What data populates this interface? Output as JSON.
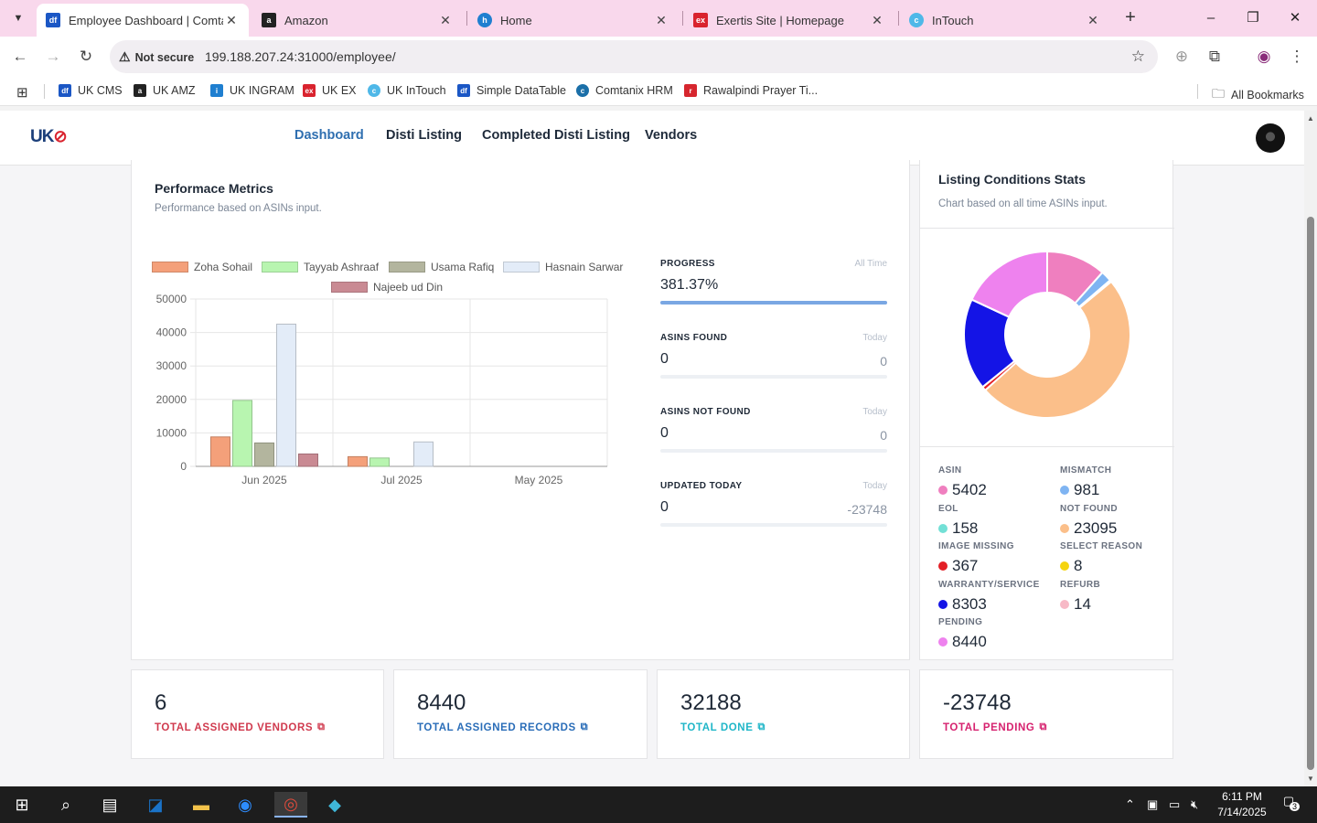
{
  "browser": {
    "tabs": [
      {
        "title": "Employee Dashboard | Comtan",
        "favicon": "df",
        "active": true
      },
      {
        "title": "Amazon",
        "favicon": "a"
      },
      {
        "title": "Home",
        "favicon": "h"
      },
      {
        "title": "Exertis Site | Homepage",
        "favicon": "ex"
      },
      {
        "title": "InTouch",
        "favicon": "c"
      }
    ],
    "security_label": "Not secure",
    "url": "199.188.207.24:31000/employee/",
    "bookmarks": [
      {
        "label": "UK CMS",
        "favicon": "df"
      },
      {
        "label": "UK AMZ",
        "favicon": "a"
      },
      {
        "label": "UK INGRAM",
        "favicon": "i"
      },
      {
        "label": "UK EX",
        "favicon": "ex"
      },
      {
        "label": "UK InTouch",
        "favicon": "c"
      },
      {
        "label": "Simple DataTable",
        "favicon": "df"
      },
      {
        "label": "Comtanix HRM",
        "favicon": "c"
      },
      {
        "label": "Rawalpindi Prayer Ti...",
        "favicon": "r"
      }
    ],
    "all_bookmarks": "All Bookmarks"
  },
  "nav": {
    "logo": "UK",
    "links": [
      "Dashboard",
      "Disti Listing",
      "Completed Disti Listing",
      "Vendors"
    ],
    "active": "Dashboard"
  },
  "performance": {
    "title": "Performace Metrics",
    "subtitle": "Performance based on ASINs input."
  },
  "chart_data": {
    "type": "bar",
    "categories": [
      "Jun 2025",
      "Jul 2025",
      "May 2025"
    ],
    "series": [
      {
        "name": "Zoha Sohail",
        "values": [
          8800,
          2900,
          0
        ],
        "color": "#f4a07a"
      },
      {
        "name": "Tayyab Ashraaf",
        "values": [
          19700,
          2500,
          0
        ],
        "color": "#b8f5b0"
      },
      {
        "name": "Usama Rafiq",
        "values": [
          7000,
          0,
          0
        ],
        "color": "#b3b59e"
      },
      {
        "name": "Hasnain Sarwar",
        "values": [
          42500,
          7300,
          0
        ],
        "color": "#e3ecf8"
      },
      {
        "name": "Najeeb ud Din",
        "values": [
          3700,
          0,
          0
        ],
        "color": "#c98a93"
      }
    ],
    "y_ticks": [
      "0",
      "10000",
      "20000",
      "30000",
      "40000",
      "50000"
    ],
    "ylim": [
      0,
      50000
    ],
    "legend_position": "top",
    "grid": true
  },
  "stats": [
    {
      "label": "PROGRESS",
      "period": "All Time",
      "value": "381.37%",
      "right": "",
      "fill": 1.0
    },
    {
      "label": "ASINS FOUND",
      "period": "Today",
      "value": "0",
      "right": "0",
      "fill": 0
    },
    {
      "label": "ASINS NOT FOUND",
      "period": "Today",
      "value": "0",
      "right": "0",
      "fill": 0
    },
    {
      "label": "UPDATED TODAY",
      "period": "Today",
      "value": "0",
      "right": "-23748",
      "fill": 0
    }
  ],
  "listing": {
    "title": "Listing Conditions Stats",
    "subtitle": "Chart based on all time ASINs input.",
    "conditions": [
      {
        "label": "ASIN",
        "value": "5402",
        "color": "#ef7fbf"
      },
      {
        "label": "MISMATCH",
        "value": "981",
        "color": "#7fb4f2"
      },
      {
        "label": "EOL",
        "value": "158",
        "color": "#73e0d6"
      },
      {
        "label": "NOT FOUND",
        "value": "23095",
        "color": "#fbbf8a"
      },
      {
        "label": "IMAGE MISSING",
        "value": "367",
        "color": "#e31f26"
      },
      {
        "label": "SELECT REASON",
        "value": "8",
        "color": "#f5d40f"
      },
      {
        "label": "WARRANTY/SERVICE",
        "value": "8303",
        "color": "#1414e6"
      },
      {
        "label": "REFURB",
        "value": "14",
        "color": "#f7b9c6"
      },
      {
        "label": "PENDING",
        "value": "8440",
        "color": "#ee82ee"
      }
    ]
  },
  "totals": [
    {
      "value": "6",
      "label": "TOTAL ASSIGNED VENDORS",
      "color": "#d03a4e"
    },
    {
      "value": "8440",
      "label": "TOTAL ASSIGNED RECORDS",
      "color": "#2a6db8"
    },
    {
      "value": "32188",
      "label": "TOTAL DONE",
      "color": "#1fb6c8"
    },
    {
      "value": "-23748",
      "label": "TOTAL PENDING",
      "color": "#d6226f"
    }
  ],
  "taskbar": {
    "time": "6:11 PM",
    "date": "7/14/2025",
    "notification_count": "3"
  }
}
